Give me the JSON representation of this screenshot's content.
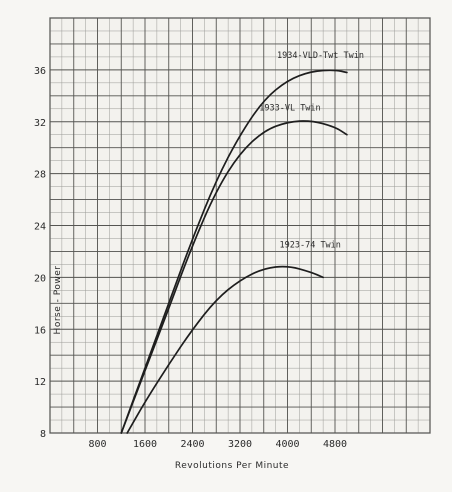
{
  "chart_data": {
    "type": "line",
    "xlabel": "Revolutions Per Minute",
    "ylabel": "Horse - Power",
    "xlim": [
      0,
      6400
    ],
    "ylim": [
      8,
      40
    ],
    "x_ticks": [
      800,
      1600,
      2400,
      3200,
      4000,
      4800
    ],
    "y_ticks": [
      8,
      12,
      16,
      20,
      24,
      28,
      32,
      36
    ],
    "x_tick_labels": [
      "800",
      "1600",
      "2400",
      "3200",
      "4000",
      "4800"
    ],
    "y_tick_labels": [
      "8",
      "12",
      "16",
      "20",
      "24",
      "28",
      "32",
      "36"
    ],
    "grid": true,
    "series": [
      {
        "name": "1934-VLD-Twt Twin",
        "points": [
          [
            1200,
            8
          ],
          [
            1600,
            13
          ],
          [
            2000,
            18
          ],
          [
            2400,
            23
          ],
          [
            2800,
            27.5
          ],
          [
            3200,
            31
          ],
          [
            3600,
            33.7
          ],
          [
            4000,
            35.2
          ],
          [
            4400,
            35.9
          ],
          [
            4800,
            36
          ],
          [
            5000,
            35.8
          ]
        ]
      },
      {
        "name": "1933-VL Twin",
        "points": [
          [
            1200,
            8
          ],
          [
            1600,
            12.8
          ],
          [
            2000,
            17.6
          ],
          [
            2400,
            22.5
          ],
          [
            2800,
            26.7
          ],
          [
            3200,
            29.6
          ],
          [
            3600,
            31.3
          ],
          [
            4000,
            32
          ],
          [
            4400,
            32.1
          ],
          [
            4800,
            31.6
          ],
          [
            5000,
            31
          ]
        ]
      },
      {
        "name": "1923-74 Twin",
        "points": [
          [
            1300,
            8
          ],
          [
            1600,
            10.4
          ],
          [
            2000,
            13.3
          ],
          [
            2400,
            16
          ],
          [
            2800,
            18.3
          ],
          [
            3200,
            19.8
          ],
          [
            3600,
            20.7
          ],
          [
            4000,
            20.9
          ],
          [
            4400,
            20.4
          ],
          [
            4600,
            20
          ]
        ]
      }
    ]
  }
}
